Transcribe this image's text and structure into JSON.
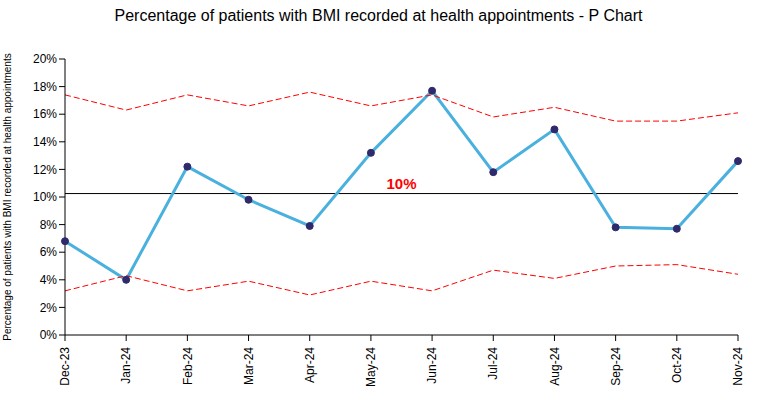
{
  "chart_data": {
    "type": "line",
    "title": "Percentage of patients with BMI recorded at health appointments - P Chart",
    "y_label": "Percentage of patients with BMI recorded at health appointments",
    "categories": [
      "Dec-23",
      "Jan-24",
      "Feb-24",
      "Mar-24",
      "Apr-24",
      "May-24",
      "Jun-24",
      "Jul-24",
      "Aug-24",
      "Sep-24",
      "Oct-24",
      "Nov-24"
    ],
    "series": [
      {
        "color": "#4AB0DE",
        "marker": "circle",
        "line_style": "solid",
        "values": [
          6.8,
          4.0,
          12.2,
          9.8,
          7.9,
          13.2,
          17.7,
          11.8,
          14.9,
          7.8,
          7.7,
          12.6
        ]
      },
      {
        "color": "#FF0000",
        "marker": "none",
        "line_style": "dashed",
        "values": [
          17.4,
          16.3,
          17.4,
          16.6,
          17.6,
          16.6,
          17.4,
          15.8,
          16.5,
          15.5,
          15.5,
          16.1
        ]
      },
      {
        "color": "#FF0000",
        "marker": "none",
        "line_style": "dashed",
        "values": [
          3.2,
          4.3,
          3.2,
          3.9,
          2.9,
          3.9,
          3.2,
          4.7,
          4.1,
          5.0,
          5.1,
          4.4
        ]
      }
    ],
    "center_line": {
      "value": 10.25,
      "label": "10%",
      "color": "#FF0000"
    },
    "ylim": [
      0,
      20
    ],
    "yticks": [
      {
        "value": 0,
        "label": "0%"
      },
      {
        "value": 2,
        "label": "2%"
      },
      {
        "value": 4,
        "label": "4%"
      },
      {
        "value": 6,
        "label": "6%"
      },
      {
        "value": 8,
        "label": "8%"
      },
      {
        "value": 10,
        "label": "10%"
      },
      {
        "value": 12,
        "label": "12%"
      },
      {
        "value": 14,
        "label": "14%"
      },
      {
        "value": 16,
        "label": "16%"
      },
      {
        "value": 18,
        "label": "18%"
      },
      {
        "value": 20,
        "label": "20%"
      }
    ],
    "grid": false
  }
}
